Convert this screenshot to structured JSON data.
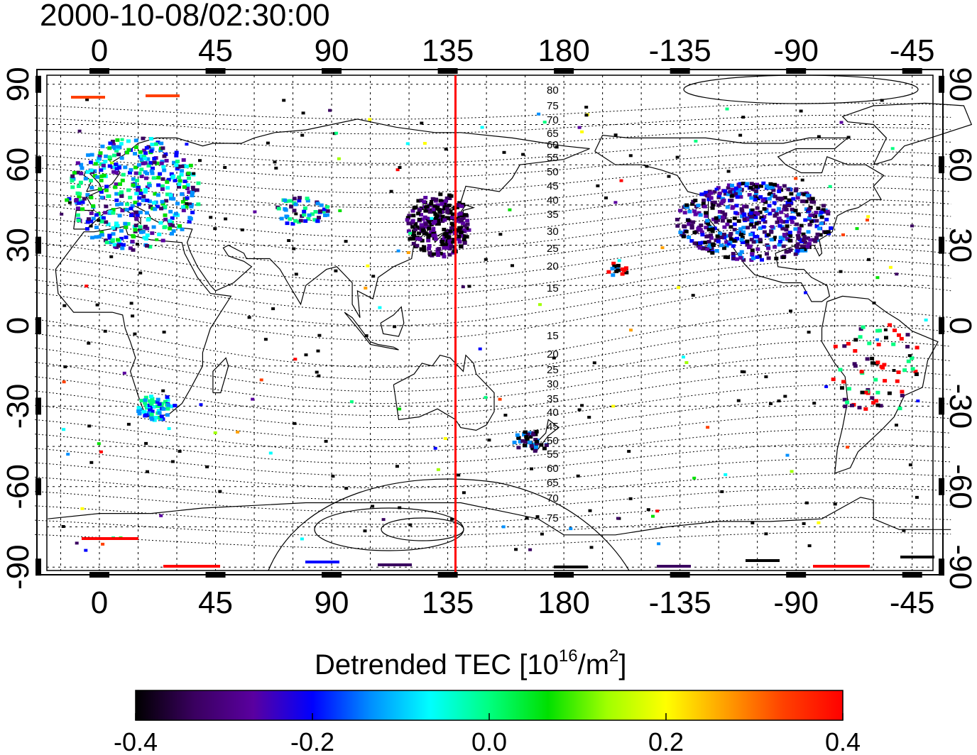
{
  "title": "2000-10-08/02:30:00",
  "map": {
    "top_lon_labels": [
      "0",
      "45",
      "90",
      "135",
      "180",
      "-135",
      "-90",
      "-45"
    ],
    "bottom_lon_labels": [
      "0",
      "45",
      "90",
      "135",
      "180",
      "-135",
      "-90",
      "-45"
    ],
    "left_lat_labels": [
      "90",
      "60",
      "30",
      "0",
      "-30",
      "-60",
      "-90"
    ],
    "right_lat_labels": [
      "90",
      "60",
      "30",
      "0",
      "-30",
      "-60",
      "-90"
    ],
    "lon_grid_step_deg": 15,
    "lat_grid_step_deg": 15,
    "lon_range": [
      "-23",
      "325"
    ],
    "lat_range": [
      -95,
      95
    ],
    "meridian_marker_lon": 138,
    "meridian_marker_color": "#ff0000",
    "magnetic_lat_labels_north": [
      "80",
      "75",
      "70",
      "65",
      "60",
      "55",
      "50",
      "45",
      "40",
      "35",
      "30",
      "25",
      "20",
      "15"
    ],
    "magnetic_lat_labels_south": [
      "15",
      "20",
      "25",
      "30",
      "35",
      "40",
      "45",
      "50",
      "55",
      "60",
      "65",
      "70",
      "75"
    ]
  },
  "colorbar": {
    "title_main": "Detrended TEC  [10",
    "title_sup1": "16",
    "title_mid": "/m",
    "title_sup2": "2",
    "title_end": "]",
    "ticks": [
      "-0.4",
      "-0.2",
      "0.0",
      "0.2",
      "0.4"
    ],
    "min": -0.4,
    "max": 0.4,
    "colors": [
      "#000000",
      "#3a0060",
      "#5a00a0",
      "#0000ff",
      "#0090ff",
      "#00ffff",
      "#00ff80",
      "#00e000",
      "#a0ff00",
      "#ffff00",
      "#ffa000",
      "#ff4000",
      "#ff0000"
    ]
  }
}
